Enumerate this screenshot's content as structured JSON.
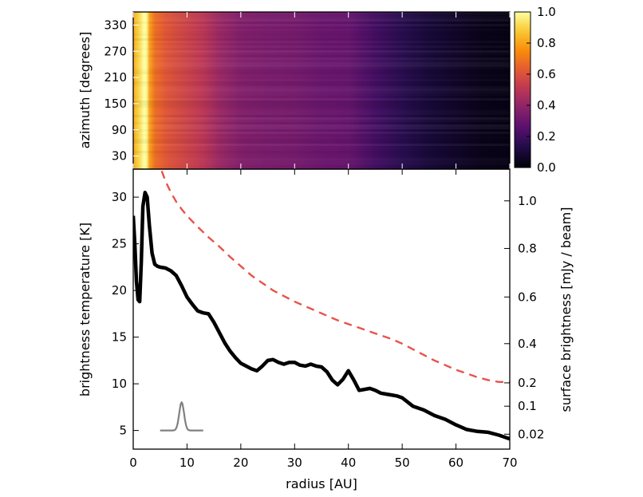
{
  "chart_data": [
    {
      "type": "heatmap",
      "panel": "top",
      "ylabel": "azimuth [degrees]",
      "y_ticks": [
        "30",
        "90",
        "150",
        "210",
        "270",
        "330"
      ],
      "y_tick_values": [
        30,
        90,
        150,
        210,
        270,
        330
      ],
      "ylim": [
        0,
        360
      ],
      "xlim": [
        0,
        70
      ],
      "colormap": "inferno",
      "colorbar": {
        "range": [
          0.0,
          1.0
        ],
        "tick_labels": [
          "0.0",
          "0.2",
          "0.4",
          "0.6",
          "0.8",
          "1.0"
        ],
        "tick_values": [
          0.0,
          0.2,
          0.4,
          0.6,
          0.8,
          1.0
        ]
      },
      "radial_profile": {
        "radius": [
          0,
          1,
          2,
          2.5,
          3,
          4,
          6,
          8,
          10,
          13,
          16,
          20,
          25,
          30,
          35,
          40,
          45,
          50,
          55,
          60,
          65,
          70
        ],
        "value": [
          0.82,
          0.9,
          1.0,
          0.98,
          0.8,
          0.68,
          0.62,
          0.58,
          0.55,
          0.5,
          0.42,
          0.36,
          0.34,
          0.33,
          0.3,
          0.29,
          0.21,
          0.15,
          0.1,
          0.07,
          0.04,
          0.03
        ]
      }
    },
    {
      "type": "line",
      "panel": "bottom",
      "xlabel": "radius [AU]",
      "ylabel": "brightness temperature [K]",
      "ylabel_right": "surface brightness [mJy / beam]",
      "xlim": [
        0,
        70
      ],
      "ylim": [
        3,
        33
      ],
      "x_ticks": [
        "0",
        "10",
        "20",
        "30",
        "40",
        "50",
        "60",
        "70"
      ],
      "x_tick_values": [
        0,
        10,
        20,
        30,
        40,
        50,
        60,
        70
      ],
      "y_ticks": [
        "5",
        "10",
        "15",
        "20",
        "25",
        "30"
      ],
      "y_tick_values": [
        5,
        10,
        15,
        20,
        25,
        30
      ],
      "right_ticks": [
        "0.02",
        "0.1",
        "0.2",
        "0.4",
        "0.6",
        "0.8",
        "1.0"
      ],
      "right_tick_positions_in_K": [
        4.6,
        7.6,
        10.1,
        14.3,
        19.3,
        24.5,
        29.6
      ],
      "series": [
        {
          "name": "brightness temperature",
          "style": "solid",
          "color": "#000000",
          "x": [
            0,
            0.3,
            0.6,
            0.9,
            1.2,
            1.5,
            1.8,
            2.2,
            2.6,
            3.0,
            3.5,
            4.0,
            4.5,
            5.0,
            6,
            7,
            8,
            9,
            10,
            11,
            12,
            13,
            14,
            15,
            16,
            17,
            18,
            19,
            20,
            21,
            22,
            23,
            24,
            25,
            26,
            27,
            28,
            29,
            30,
            31,
            32,
            33,
            34,
            35,
            36,
            37,
            38,
            39,
            40,
            41,
            42,
            43,
            44,
            45,
            46,
            47,
            48,
            49,
            50,
            52,
            54,
            56,
            58,
            60,
            62,
            64,
            66,
            68,
            70
          ],
          "y": [
            28,
            25,
            21,
            19,
            18.8,
            23,
            29,
            30.5,
            30,
            27,
            24,
            22.8,
            22.6,
            22.5,
            22.4,
            22.1,
            21.6,
            20.5,
            19.3,
            18.5,
            17.8,
            17.6,
            17.5,
            16.6,
            15.5,
            14.4,
            13.5,
            12.8,
            12.2,
            11.9,
            11.6,
            11.4,
            11.9,
            12.5,
            12.6,
            12.3,
            12.1,
            12.3,
            12.3,
            12.0,
            11.9,
            12.1,
            11.9,
            11.8,
            11.3,
            10.4,
            9.9,
            10.5,
            11.4,
            10.4,
            9.3,
            9.4,
            9.5,
            9.3,
            9.0,
            8.9,
            8.8,
            8.7,
            8.5,
            7.6,
            7.2,
            6.6,
            6.2,
            5.6,
            5.1,
            4.9,
            4.8,
            4.5,
            4.1
          ]
        },
        {
          "name": "dashed reference",
          "style": "dashed",
          "color": "#e8534b",
          "x": [
            5.3,
            6,
            7,
            8,
            9,
            10,
            12,
            14,
            16,
            18,
            20,
            22,
            24,
            26,
            28,
            30,
            32,
            34,
            36,
            38,
            40,
            42,
            44,
            46,
            48,
            50,
            52,
            54,
            56,
            58,
            60,
            62,
            64,
            66,
            68,
            70
          ],
          "y": [
            32.8,
            31.7,
            30.5,
            29.5,
            28.7,
            28.0,
            26.8,
            25.7,
            24.7,
            23.6,
            22.6,
            21.6,
            20.8,
            20.0,
            19.4,
            18.8,
            18.3,
            17.8,
            17.3,
            16.8,
            16.4,
            16.0,
            15.6,
            15.2,
            14.8,
            14.3,
            13.7,
            13.1,
            12.5,
            12.0,
            11.5,
            11.1,
            10.7,
            10.4,
            10.2,
            10.2
          ]
        },
        {
          "name": "beam",
          "style": "solid",
          "color": "#808080",
          "center": 9.0,
          "x_start": 5.0,
          "x_end": 13.0,
          "base": 5.0,
          "peak": 8.0,
          "sigma": 0.45
        }
      ]
    }
  ]
}
